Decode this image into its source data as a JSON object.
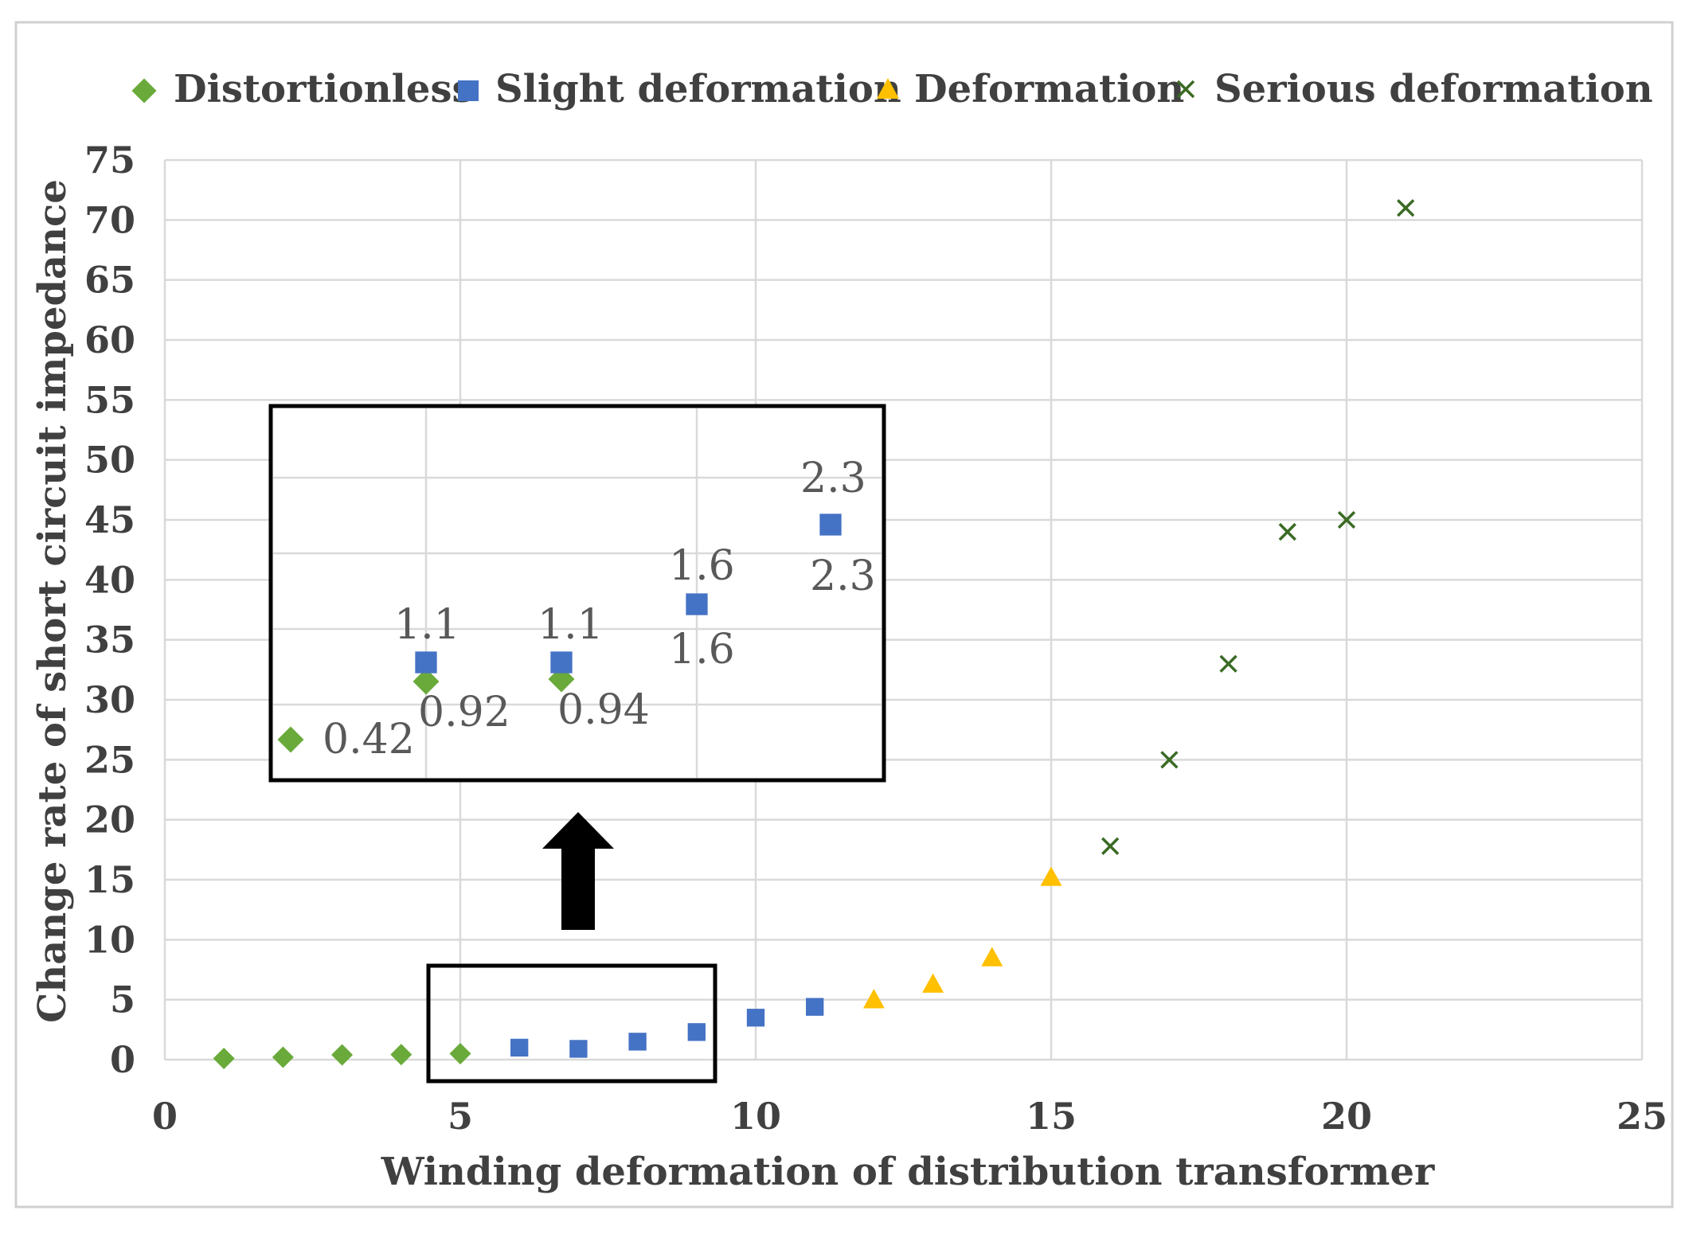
{
  "chart_data": {
    "type": "scatter",
    "title": "",
    "xlabel": "Winding deformation of distribution transformer",
    "ylabel": "Change rate of short circuit impedance",
    "xlim": [
      0,
      25
    ],
    "ylim": [
      0,
      75
    ],
    "x_ticks": [
      "0",
      "5",
      "10",
      "15",
      "20",
      "25"
    ],
    "y_ticks": [
      "0",
      "5",
      "10",
      "15",
      "20",
      "25",
      "30",
      "35",
      "40",
      "45",
      "50",
      "55",
      "60",
      "65",
      "70",
      "75"
    ],
    "grid": true,
    "legend_position": "top",
    "series": [
      {
        "name": "Distortionless",
        "marker": "diamond",
        "color": "#6aaa3a",
        "points": [
          [
            1,
            0.1
          ],
          [
            2,
            0.2
          ],
          [
            3,
            0.4
          ],
          [
            4,
            0.42
          ],
          [
            5,
            0.5
          ]
        ]
      },
      {
        "name": "Slight deformation",
        "marker": "square",
        "color": "#4472c4",
        "points": [
          [
            6,
            1.0
          ],
          [
            7,
            0.9
          ],
          [
            8,
            1.5
          ],
          [
            9,
            2.3
          ],
          [
            10,
            3.5
          ],
          [
            11,
            4.4
          ]
        ]
      },
      {
        "name": "Deformation",
        "marker": "triangle",
        "color": "#ffc000",
        "points": [
          [
            12,
            5.0
          ],
          [
            13,
            6.3
          ],
          [
            14,
            8.5
          ],
          [
            15,
            15.2
          ]
        ]
      },
      {
        "name": "Serious deformation",
        "marker": "x",
        "color": "#3a6b24",
        "points": [
          [
            16,
            17.8
          ],
          [
            17,
            25.0
          ],
          [
            18,
            33.0
          ],
          [
            19,
            44.0
          ],
          [
            20,
            45.0
          ],
          [
            21,
            71.0
          ]
        ]
      }
    ],
    "inset": {
      "points": [
        {
          "series": "Distortionless",
          "label": "0.42"
        },
        {
          "series": "Distortionless",
          "label": "0.92"
        },
        {
          "series": "Distortionless",
          "label": "0.94"
        },
        {
          "series": "Slight deformation",
          "label": "1.1"
        },
        {
          "series": "Slight deformation",
          "label": "1.1"
        },
        {
          "series": "Slight deformation",
          "label": "1.6"
        },
        {
          "series": "Slight deformation",
          "label": "1.6"
        },
        {
          "series": "Slight deformation",
          "label": "2.3"
        },
        {
          "series": "Slight deformation",
          "label": "2.3"
        }
      ]
    }
  }
}
